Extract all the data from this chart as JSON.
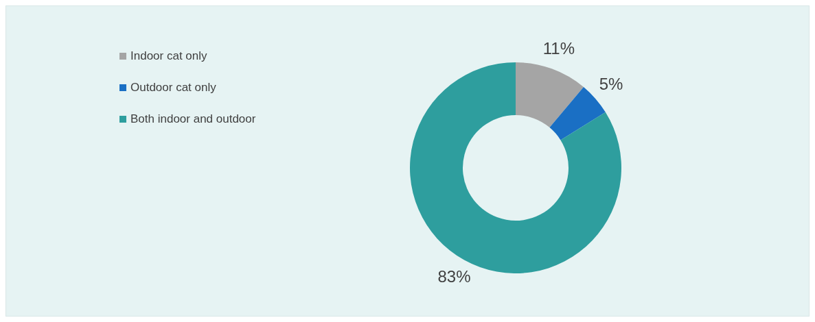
{
  "chart_data": {
    "type": "donut",
    "categories": [
      "Indoor cat only",
      "Outdoor cat only",
      "Both indoor and outdoor"
    ],
    "values": [
      11,
      5,
      83
    ],
    "colors": [
      "#a5a5a5",
      "#1a6fc4",
      "#2e9e9e"
    ],
    "value_labels": [
      "11%",
      "5%",
      "83%"
    ],
    "legend": "top left"
  }
}
